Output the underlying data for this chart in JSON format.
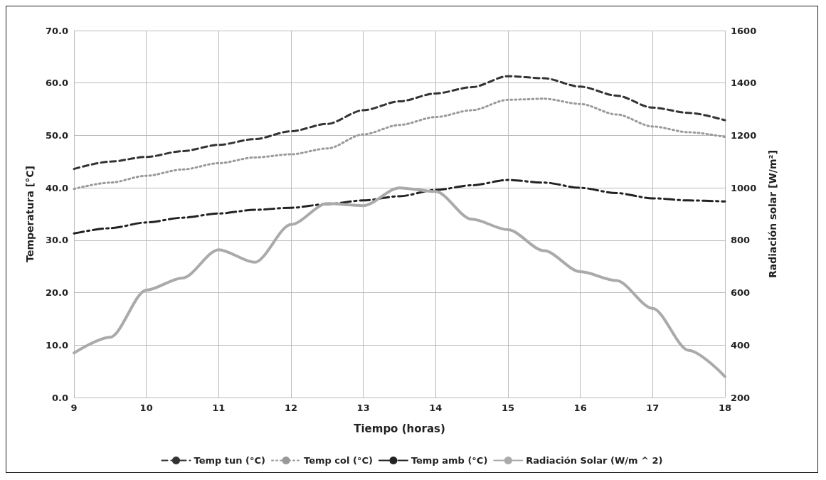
{
  "chart_data": {
    "type": "line",
    "xlabel": "Tiempo (horas)",
    "ylabel": "Temperatura [°C]",
    "y2label": "Radiación solar [W/m²]",
    "x": [
      9,
      9.5,
      10,
      10.5,
      11,
      11.5,
      12,
      12.5,
      13,
      13.5,
      14,
      14.5,
      15,
      15.5,
      16,
      16.5,
      17,
      17.5,
      18
    ],
    "series": [
      {
        "name": "Temp tun (°C)",
        "color": "#333333",
        "line_style": "dashed",
        "values": [
          43.6,
          45.0,
          45.9,
          47.0,
          48.2,
          49.3,
          50.8,
          52.2,
          54.8,
          56.5,
          58.0,
          59.2,
          61.3,
          60.9,
          59.3,
          57.6,
          55.3,
          54.3,
          52.9
        ]
      },
      {
        "name": "Temp col (°C)",
        "color": "#999999",
        "line_style": "dotted",
        "values": [
          39.8,
          41.0,
          42.3,
          43.5,
          44.7,
          45.8,
          46.4,
          47.5,
          50.2,
          52.0,
          53.5,
          54.8,
          56.8,
          57.0,
          56.0,
          54.0,
          51.7,
          50.6,
          49.7
        ]
      },
      {
        "name": "Temp amb (°C)",
        "color": "#222222",
        "line_style": "dashdot",
        "values": [
          31.3,
          32.3,
          33.4,
          34.3,
          35.1,
          35.8,
          36.2,
          36.9,
          37.6,
          38.4,
          39.6,
          40.5,
          41.5,
          41.0,
          40.0,
          39.0,
          38.0,
          37.6,
          37.4
        ]
      },
      {
        "name": "Radiación Solar (W/m ^ 2)",
        "color": "#aaaaaa",
        "line_style": "solid",
        "axis": "y2",
        "values": [
          370,
          430,
          610,
          656,
          764,
          716,
          860,
          940,
          932,
          1000,
          986,
          880,
          840,
          760,
          680,
          646,
          540,
          380,
          280
        ]
      }
    ],
    "xlim": [
      9,
      18
    ],
    "xticks": [
      9,
      10,
      11,
      12,
      13,
      14,
      15,
      16,
      17,
      18
    ],
    "ylim": [
      0,
      70
    ],
    "yticks": [
      {
        "value": 0,
        "label": "0.0"
      },
      {
        "value": 10,
        "label": "10.0"
      },
      {
        "value": 20,
        "label": "20.0"
      },
      {
        "value": 30,
        "label": "30.0"
      },
      {
        "value": 40,
        "label": "40.0"
      },
      {
        "value": 50,
        "label": "50.0"
      },
      {
        "value": 60,
        "label": "60.0"
      },
      {
        "value": 70,
        "label": "70.0"
      }
    ],
    "y2lim": [
      200,
      1600
    ],
    "y2ticks": [
      200,
      400,
      600,
      800,
      1000,
      1200,
      1400,
      1600
    ],
    "grid": true,
    "legend": "bottom",
    "marker": "none"
  }
}
